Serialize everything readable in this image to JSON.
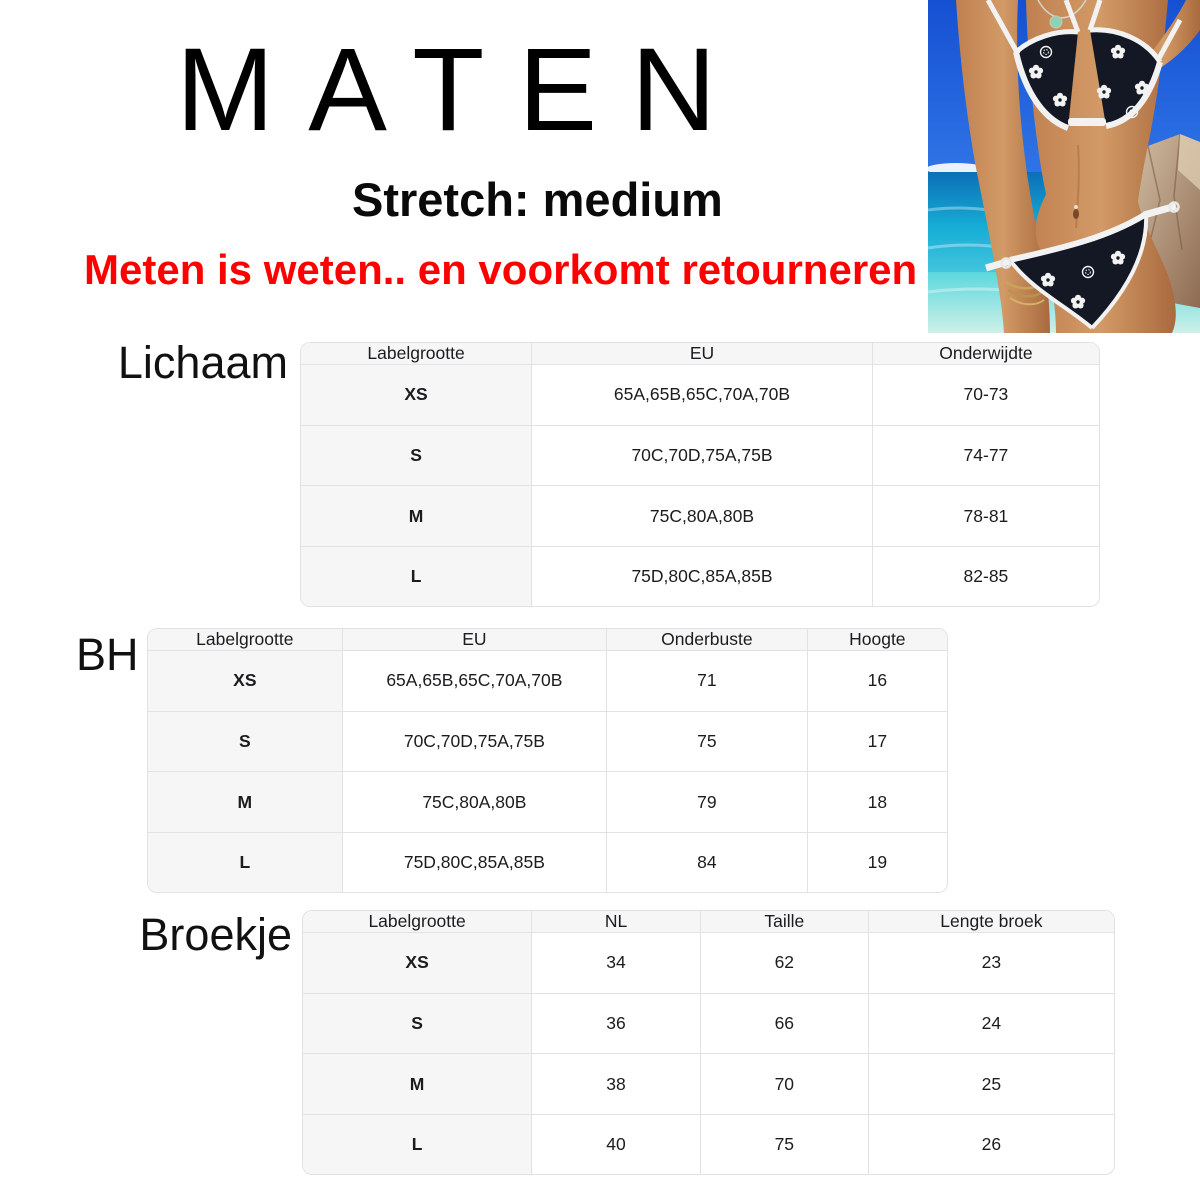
{
  "header": {
    "title": "MATEN",
    "subtitle": "Stretch: medium",
    "warning": "Meten is weten.. en voorkomt retourneren !"
  },
  "colors": {
    "warning_red": "#ff0000",
    "table_header_bg": "#f6f6f7",
    "table_border": "#e2e2e5",
    "text": "#1c1c1e"
  },
  "product_photo": {
    "description": "Model on a beach wearing a black triangle bikini with white floral and pineapple print and white trim",
    "colors": {
      "sky": "#1550d2",
      "sea": "#17aed6",
      "shallow_water": "#cff0e8",
      "skin": "#c08050",
      "bikini_fabric": "#141824",
      "bikini_trim": "#f2f2f2",
      "rocks": "#c0a88c"
    }
  },
  "tables": [
    {
      "label": "Lichaam",
      "headers": [
        "Labelgrootte",
        "EU",
        "Onderwijdte"
      ],
      "rows": [
        [
          "XS",
          "65A,65B,65C,70A,70B",
          "70-73"
        ],
        [
          "S",
          "70C,70D,75A,75B",
          "74-77"
        ],
        [
          "M",
          "75C,80A,80B",
          "78-81"
        ],
        [
          "L",
          "75D,80C,85A,85B",
          "82-85"
        ]
      ]
    },
    {
      "label": "BH",
      "headers": [
        "Labelgrootte",
        "EU",
        "Onderbuste",
        "Hoogte"
      ],
      "rows": [
        [
          "XS",
          "65A,65B,65C,70A,70B",
          "71",
          "16"
        ],
        [
          "S",
          "70C,70D,75A,75B",
          "75",
          "17"
        ],
        [
          "M",
          "75C,80A,80B",
          "79",
          "18"
        ],
        [
          "L",
          "75D,80C,85A,85B",
          "84",
          "19"
        ]
      ]
    },
    {
      "label": "Broekje",
      "headers": [
        "Labelgrootte",
        "NL",
        "Taille",
        "Lengte broek"
      ],
      "rows": [
        [
          "XS",
          "34",
          "62",
          "23"
        ],
        [
          "S",
          "36",
          "66",
          "24"
        ],
        [
          "M",
          "38",
          "70",
          "25"
        ],
        [
          "L",
          "40",
          "75",
          "26"
        ]
      ]
    }
  ]
}
